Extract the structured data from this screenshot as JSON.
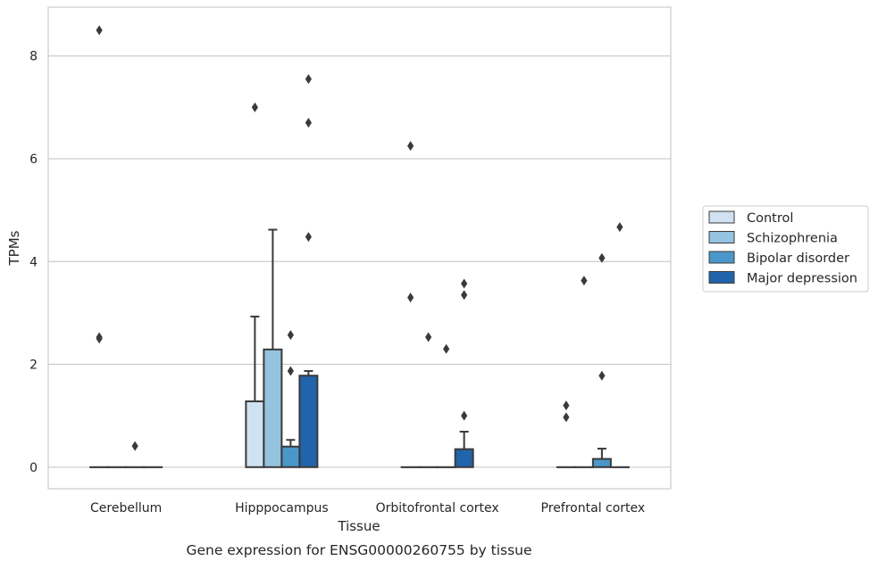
{
  "chart_data": {
    "type": "bar",
    "title": "",
    "caption": "Gene expression for ENSG00000260755 by tissue",
    "xlabel": "Tissue",
    "ylabel": "TPMs",
    "ylim": [
      -0.42,
      8.95
    ],
    "yticks": [
      0,
      2,
      4,
      6,
      8
    ],
    "grid": "horizontal",
    "legend_position": "right",
    "categories": [
      "Cerebellum",
      "Hipppocampus",
      "Orbitofrontal cortex",
      "Prefrontal cortex"
    ],
    "series": [
      {
        "name": "Control",
        "color": "#d0e1f2",
        "values": [
          0,
          1.28,
          0,
          0
        ],
        "error_upper": [
          null,
          2.93,
          null,
          null
        ],
        "outliers": [
          [
            8.5,
            2.5,
            2.53
          ],
          [
            7.0
          ],
          [
            3.3,
            6.25
          ],
          [
            1.2,
            0.97
          ]
        ]
      },
      {
        "name": "Schizophrenia",
        "color": "#94c4df",
        "values": [
          0,
          2.29,
          0,
          0
        ],
        "error_upper": [
          null,
          4.62,
          null,
          null
        ],
        "outliers": [
          [],
          [],
          [
            2.53
          ],
          [
            3.63
          ]
        ]
      },
      {
        "name": "Bipolar disorder",
        "color": "#4a98c9",
        "values": [
          0,
          0.4,
          0,
          0.16
        ],
        "error_upper": [
          null,
          0.53,
          null,
          0.36
        ],
        "outliers": [
          [
            0.41
          ],
          [
            2.57,
            1.87
          ],
          [
            2.3
          ],
          [
            4.07,
            1.78
          ]
        ]
      },
      {
        "name": "Major depression",
        "color": "#2164ab",
        "values": [
          0,
          1.78,
          0.35,
          0
        ],
        "error_upper": [
          null,
          1.87,
          0.69,
          null
        ],
        "outliers": [
          [],
          [
            7.55,
            6.7,
            4.48
          ],
          [
            3.57,
            3.35,
            1.0
          ],
          [
            4.67
          ]
        ]
      }
    ]
  }
}
